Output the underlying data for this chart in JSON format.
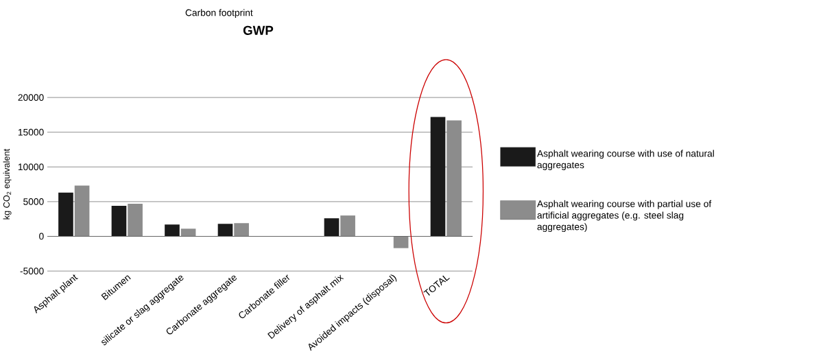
{
  "chart_data": {
    "type": "bar",
    "title": "GWP",
    "subtitle": "Carbon footprint",
    "ylabel": "kg CO$_{2}$ equivalent",
    "categories": [
      "Asphalt plant",
      "Bitumen",
      "silicate or slag aggregate",
      "Carbonate aggregate",
      "Carbonate filler",
      "Delivery of asphalt mix",
      "Avoided impacts (disposal)",
      "TOTAL"
    ],
    "series": [
      {
        "name": "Asphalt wearing course with use of natural aggregates",
        "color": "#1a1a1a",
        "values": [
          6300,
          4400,
          1700,
          1800,
          0,
          2600,
          0,
          17200
        ]
      },
      {
        "name": "Asphalt wearing course with partial use of artificial aggregates (e.g. steel slag aggregates)",
        "color": "#8c8c8c",
        "values": [
          7300,
          4700,
          1100,
          1900,
          0,
          3000,
          -1700,
          16700
        ]
      }
    ],
    "ylim": [
      -5000,
      20000
    ],
    "yticks": [
      -5000,
      0,
      5000,
      10000,
      15000,
      20000
    ],
    "grid": "y",
    "legend": "right"
  }
}
